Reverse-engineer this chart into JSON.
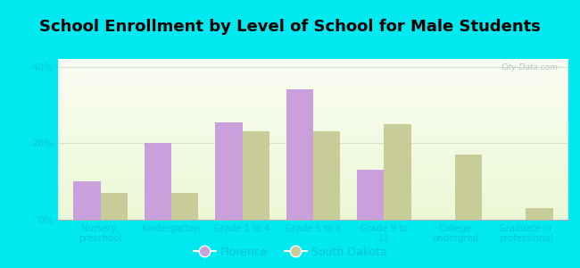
{
  "title": "School Enrollment by Level of School for Male Students",
  "categories": [
    "Nursery,\npreschool",
    "Kindergarten",
    "Grade 1 to 4",
    "Grade 5 to 8",
    "Grade 9 to\n12",
    "College\nundergrad",
    "Graduate or\nprofessional"
  ],
  "florence": [
    10.0,
    20.0,
    25.5,
    34.0,
    13.0,
    0.0,
    0.0
  ],
  "south_dakota": [
    7.0,
    7.0,
    23.0,
    23.0,
    25.0,
    17.0,
    3.0
  ],
  "florence_color": "#c9a0dc",
  "sd_color": "#c8cc99",
  "bg_color": "#00e8f0",
  "ylabel_ticks": [
    "0%",
    "20%",
    "40%"
  ],
  "yticks": [
    0,
    20,
    40
  ],
  "ylim": [
    0,
    42
  ],
  "legend_florence": "Florence",
  "legend_sd": "South Dakota",
  "title_fontsize": 13,
  "bar_width": 0.38,
  "watermark": "City-Data.com",
  "tick_color": "#00c8d4",
  "plot_bg_colors": [
    "#f5faf0",
    "#eef7e5",
    "#e8f5e0",
    "#ddf0d8"
  ],
  "grid_color": "#d0e8c8"
}
